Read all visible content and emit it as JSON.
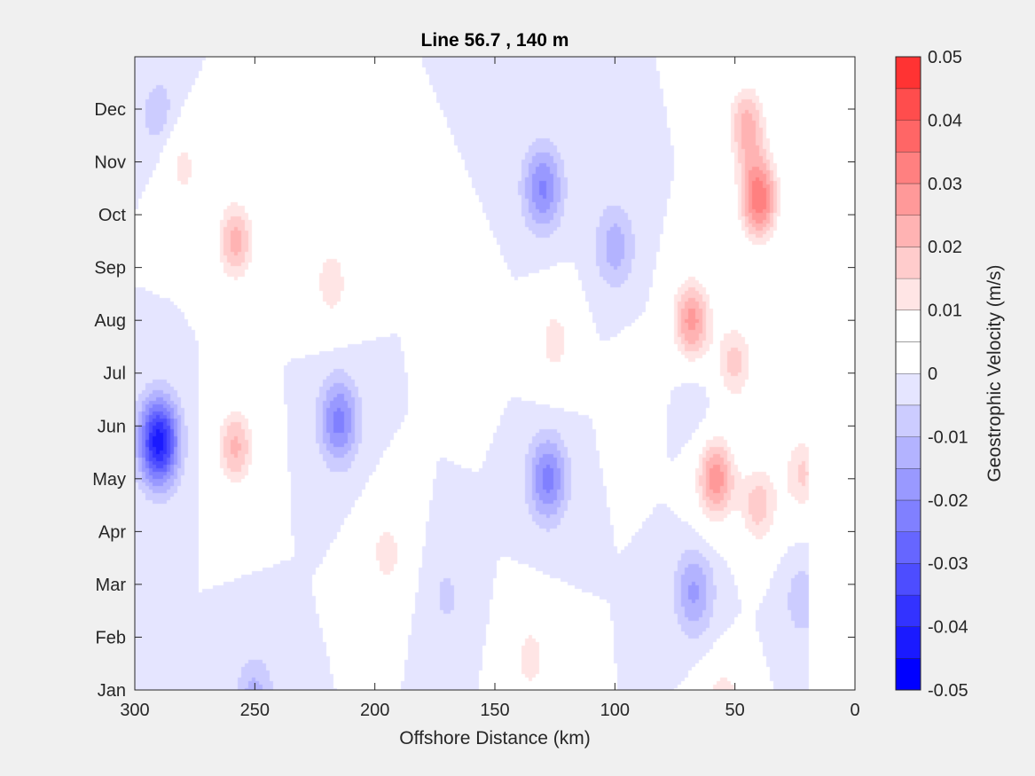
{
  "chart_data": {
    "type": "heatmap",
    "subtype": "filled-contour",
    "title": "Line 56.7 , 140 m",
    "xlabel": "Offshore Distance (km)",
    "ylabel": "",
    "xlim": [
      300,
      0
    ],
    "x_direction": "reversed",
    "x_ticks": [
      300,
      250,
      200,
      150,
      100,
      50,
      0
    ],
    "x_tick_labels": [
      "300",
      "250",
      "200",
      "150",
      "100",
      "50",
      "0"
    ],
    "y_ticks": [
      "Jan",
      "Feb",
      "Mar",
      "Apr",
      "May",
      "Jun",
      "Jul",
      "Aug",
      "Sep",
      "Oct",
      "Nov",
      "Dec"
    ],
    "colorbar": {
      "label": "Geostrophic Velocity (m/s)",
      "range": [
        -0.05,
        0.05
      ],
      "levels": [
        -0.05,
        -0.045,
        -0.04,
        -0.035,
        -0.03,
        -0.025,
        -0.02,
        -0.015,
        -0.01,
        -0.005,
        0,
        0.005,
        0.01,
        0.015,
        0.02,
        0.025,
        0.03,
        0.035,
        0.04,
        0.045,
        0.05
      ],
      "tick_values": [
        -0.05,
        -0.04,
        -0.03,
        -0.02,
        -0.01,
        0,
        0.01,
        0.02,
        0.03,
        0.04,
        0.05
      ],
      "tick_labels": [
        "-0.05",
        "-0.04",
        "-0.03",
        "-0.02",
        "-0.01",
        "0",
        "0.01",
        "0.02",
        "0.03",
        "0.04",
        "0.05"
      ],
      "colors": [
        "#0000ff",
        "#1a1aff",
        "#3333ff",
        "#4d4dff",
        "#6666ff",
        "#8080ff",
        "#9999ff",
        "#b3b3ff",
        "#ccccff",
        "#e5e5ff",
        "#ffffff",
        "#ffffff",
        "#ffe5e5",
        "#ffcccc",
        "#ffb3b3",
        "#ff9999",
        "#ff8080",
        "#ff6666",
        "#ff4d4d",
        "#ff3333",
        "#ff1a1a"
      ]
    },
    "data_x_extent_km": [
      20,
      300
    ],
    "features": [
      {
        "x_km": 290,
        "month": 5.7,
        "value": -0.043
      },
      {
        "x_km": 258,
        "month": 9.5,
        "value": 0.022
      },
      {
        "x_km": 280,
        "month": 10.9,
        "value": 0.012
      },
      {
        "x_km": 258,
        "month": 5.6,
        "value": 0.021
      },
      {
        "x_km": 215,
        "month": 6.1,
        "value": -0.022
      },
      {
        "x_km": 290,
        "month": 11.9,
        "value": -0.008
      },
      {
        "x_km": 218,
        "month": 8.7,
        "value": 0.014
      },
      {
        "x_km": 130,
        "month": 10.5,
        "value": -0.021
      },
      {
        "x_km": 100,
        "month": 9.4,
        "value": -0.013
      },
      {
        "x_km": 128,
        "month": 5.0,
        "value": -0.022
      },
      {
        "x_km": 195,
        "month": 3.6,
        "value": 0.013
      },
      {
        "x_km": 125,
        "month": 7.6,
        "value": 0.013
      },
      {
        "x_km": 68,
        "month": 8.0,
        "value": 0.027
      },
      {
        "x_km": 40,
        "month": 10.3,
        "value": 0.034
      },
      {
        "x_km": 45,
        "month": 11.7,
        "value": 0.022
      },
      {
        "x_km": 50,
        "month": 7.2,
        "value": 0.017
      },
      {
        "x_km": 58,
        "month": 5.0,
        "value": 0.028
      },
      {
        "x_km": 40,
        "month": 4.5,
        "value": 0.018
      },
      {
        "x_km": 90,
        "month": 6.5,
        "value": 0.006
      },
      {
        "x_km": 67,
        "month": 6.4,
        "value": -0.004
      },
      {
        "x_km": 67,
        "month": 2.85,
        "value": -0.016
      },
      {
        "x_km": 250,
        "month": 0.8,
        "value": -0.013
      },
      {
        "x_km": 135,
        "month": 1.6,
        "value": 0.013
      },
      {
        "x_km": 55,
        "month": 0.6,
        "value": 0.018
      },
      {
        "x_km": 22,
        "month": 5.1,
        "value": 0.016
      },
      {
        "x_km": 22,
        "month": 2.7,
        "value": -0.008
      },
      {
        "x_km": 160,
        "month": 7.8,
        "value": 0.007
      },
      {
        "x_km": 170,
        "month": 2.75,
        "value": -0.006
      }
    ]
  }
}
